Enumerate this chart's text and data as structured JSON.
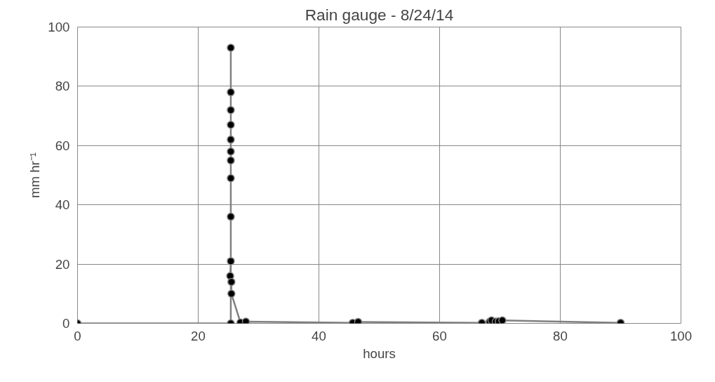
{
  "chart_data": {
    "type": "line",
    "title": "Rain gauge - 8/24/14",
    "xlabel": "hours",
    "ylabel": "mm hr⁻¹",
    "x": [
      0,
      25.4,
      25.4,
      25.4,
      25.4,
      25.4,
      25.4,
      25.4,
      25.4,
      25.4,
      25.4,
      25.4,
      25.3,
      25.5,
      25.5,
      27,
      27.9,
      45.6,
      46.5,
      67,
      68.3,
      68.6,
      69.3,
      69.8,
      70.4,
      90
    ],
    "series": [
      {
        "color": "#808080",
        "values": [
          0,
          0,
          93,
          78,
          72,
          67,
          62,
          58,
          55,
          49,
          36,
          21,
          16,
          14,
          10,
          0.3,
          0.6,
          0.2,
          0.5,
          0.2,
          0.6,
          1,
          0.6,
          0.7,
          1,
          0.2
        ]
      }
    ],
    "xlim": [
      0,
      100
    ],
    "ylim": [
      0,
      100
    ],
    "xticks": [
      0,
      20,
      40,
      60,
      80,
      100
    ],
    "yticks": [
      0,
      20,
      40,
      60,
      80,
      100
    ],
    "grid": true,
    "marker": "circle",
    "line_style": "solid"
  }
}
